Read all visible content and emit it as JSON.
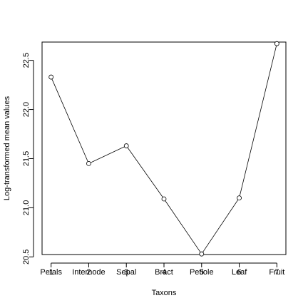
{
  "chart_data": {
    "type": "line",
    "title": "",
    "xlabel": "Taxons",
    "ylabel": "Log-transformed mean values",
    "x": [
      1,
      2,
      3,
      4,
      5,
      6,
      7
    ],
    "categories": [
      "Petals",
      "Internode",
      "Sepal",
      "Bract",
      "Petiole",
      "Leaf",
      "Fruit"
    ],
    "values": [
      22.33,
      21.45,
      21.63,
      21.09,
      20.53,
      21.1,
      22.67
    ],
    "xlim": [
      0.76,
      7.24
    ],
    "ylim": [
      20.524,
      22.686
    ],
    "yticks": [
      "20.5",
      "21.0",
      "21.5",
      "22.0",
      "22.5"
    ],
    "grid": false,
    "legend": "none",
    "colors": {
      "line": "#000000",
      "background": "#ffffff"
    }
  }
}
